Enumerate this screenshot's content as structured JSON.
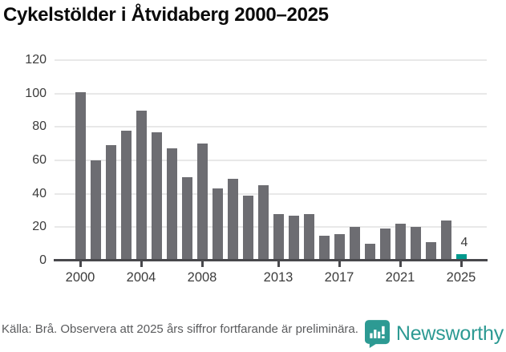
{
  "title": "Cykelstölder i Åtvidaberg 2000–2025",
  "chart_data": {
    "type": "bar",
    "categories": [
      2000,
      2001,
      2002,
      2003,
      2004,
      2005,
      2006,
      2007,
      2008,
      2009,
      2010,
      2011,
      2012,
      2013,
      2014,
      2015,
      2016,
      2017,
      2018,
      2019,
      2020,
      2021,
      2022,
      2023,
      2024,
      2025
    ],
    "values": [
      101,
      60,
      69,
      78,
      90,
      77,
      67,
      50,
      70,
      43,
      49,
      39,
      45,
      28,
      27,
      28,
      15,
      16,
      20,
      10,
      19,
      22,
      20,
      11,
      24,
      4
    ],
    "title": "Cykelstölder i Åtvidaberg 2000–2025",
    "xlabel": "",
    "ylabel": "",
    "ylim": [
      0,
      120
    ],
    "y_ticks": [
      0,
      20,
      40,
      60,
      80,
      100,
      120
    ],
    "x_ticks": [
      2000,
      2004,
      2008,
      2013,
      2017,
      2021,
      2025
    ],
    "grid": "horizontal gridlines only",
    "legend": "none",
    "bar_color": "#6d6d72",
    "highlight": {
      "category": 2025,
      "color": "#009a8e",
      "label": "4"
    }
  },
  "footer": {
    "source_note": "Källa: Brå. Observera att 2025 års siffror fortfarande är preliminära."
  },
  "logo": {
    "name": "Newsworthy",
    "icon": "newsworthy-bars-icon",
    "color": "#2d9a93"
  }
}
